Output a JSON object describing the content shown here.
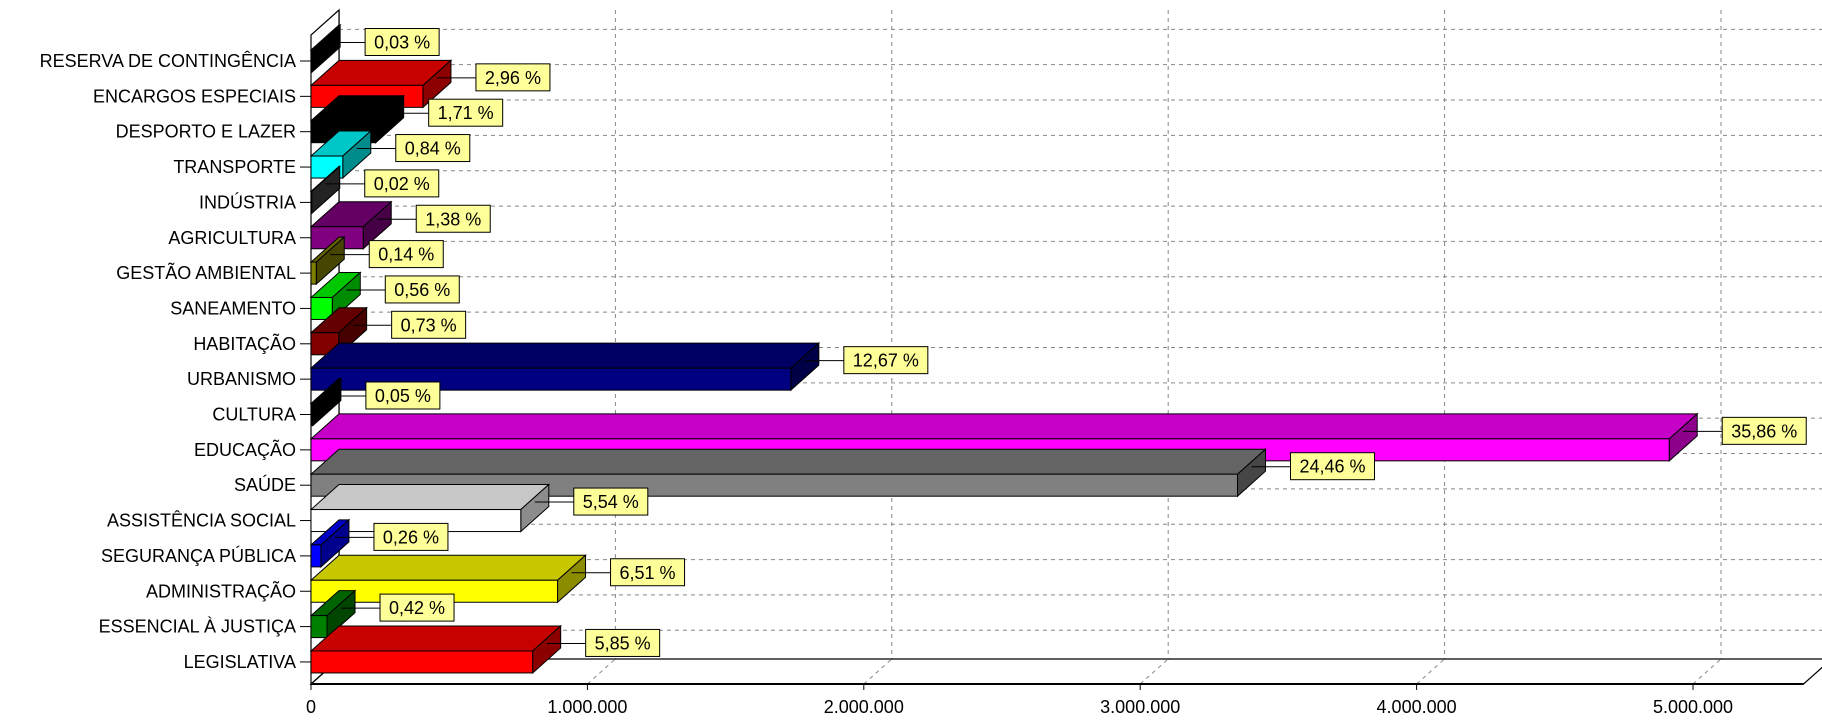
{
  "chart_data": {
    "type": "bar",
    "orientation": "horizontal",
    "three_d": true,
    "grid": true,
    "xlim": [
      0,
      5400000
    ],
    "x_ticks": [
      0,
      1000000,
      2000000,
      3000000,
      4000000,
      5000000
    ],
    "x_tick_labels": [
      "0",
      "1.000.000",
      "2.000.000",
      "3.000.000",
      "4.000.000",
      "5.000.000"
    ],
    "categories": [
      "RESERVA DE CONTINGÊNCIA",
      "ENCARGOS ESPECIAIS",
      "DESPORTO E LAZER",
      "TRANSPORTE",
      "INDÚSTRIA",
      "AGRICULTURA",
      "GESTÃO AMBIENTAL",
      "SANEAMENTO",
      "HABITAÇÃO",
      "URBANISMO",
      "CULTURA",
      "EDUCAÇÃO",
      "SAÚDE",
      "ASSISTÊNCIA SOCIAL",
      "SEGURANÇA PÚBLICA",
      "ADMINISTRAÇÃO",
      "ESSENCIAL À JUSTIÇA",
      "LEGISLATIVA"
    ],
    "values": [
      4100,
      405000,
      234000,
      115000,
      2700,
      189000,
      19000,
      77000,
      100000,
      1736000,
      6800,
      4914000,
      3352000,
      759000,
      36000,
      892000,
      58000,
      802000
    ],
    "data_labels": [
      "0,03 %",
      "2,96 %",
      "1,71 %",
      "0,84 %",
      "0,02 %",
      "1,38 %",
      "0,14 %",
      "0,56 %",
      "0,73 %",
      "12,67 %",
      "0,05 %",
      "35,86 %",
      "24,46 %",
      "5,54 %",
      "0,26 %",
      "6,51 %",
      "0,42 %",
      "5,85 %"
    ],
    "colors": [
      "#000000",
      "#ff0000",
      "#000000",
      "#00ffff",
      "#404040",
      "#800080",
      "#808000",
      "#00ff00",
      "#800000",
      "#000080",
      "#000000",
      "#ff00ff",
      "#808080",
      "#ffffff",
      "#0000ff",
      "#ffff00",
      "#008000",
      "#ff0000"
    ],
    "label_box_color": "#ffff99"
  }
}
